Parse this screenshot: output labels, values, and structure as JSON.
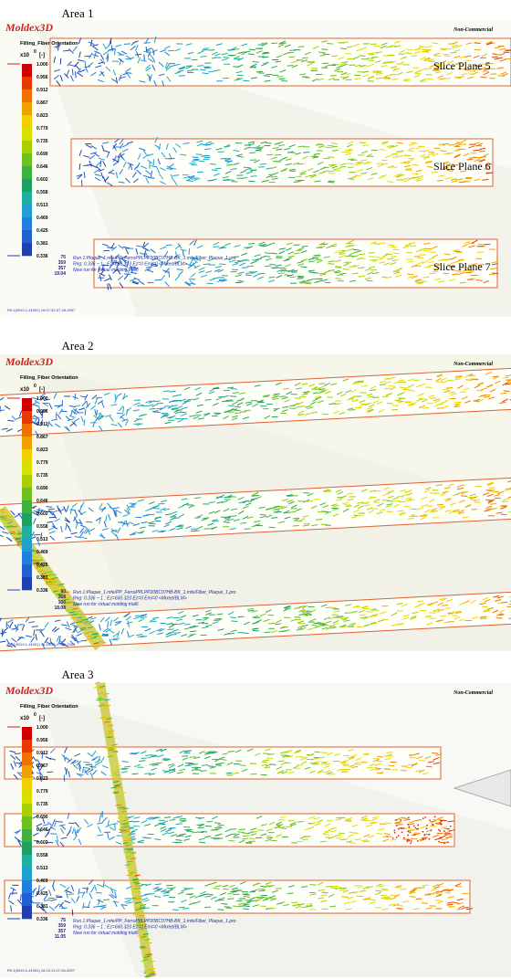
{
  "panels": [
    {
      "area": "Area 1",
      "logo": "Moldex3D",
      "watermark": "Non-Commercial",
      "legend_title": "Filling_Fiber Orientation",
      "scale": "x10",
      "exponent": "0",
      "unit": "[-]",
      "legend": [
        "1.000",
        "0.956",
        "0.912",
        "0.867",
        "0.823",
        "0.779",
        "0.735",
        "0.690",
        "0.646",
        "0.602",
        "0.558",
        "0.513",
        "0.469",
        "0.425",
        "0.381",
        "0.336"
      ],
      "slice_labels": [
        "Slice Plane 5",
        "Slice Plane 6",
        "Slice Plane 7"
      ],
      "stats": [
        "75",
        "359",
        "357",
        "19.04"
      ],
      "run_info": [
        "Run 1:Plaque_1.mfe/PP_FerroPPLPP20BC07HB-BK_1.mfe/Fiber_Plaque_1.pro",
        "Rng: 0.336 ~ 1 ; Ez=660.323 Ez=0 Emi=0 <Mixed/BLM>",
        "New run for virtual molding trial6"
      ],
      "footer": "R9.1(9010.1-41051) 16:07:32-07-26-2007"
    },
    {
      "area": "Area 2",
      "logo": "Moldex3D",
      "watermark": "Non-Commercial",
      "legend_title": "Filling_Fiber Orientation",
      "scale": "x10",
      "exponent": "0",
      "unit": "[-]",
      "legend": [
        "1.000",
        "0.956",
        "0.912",
        "0.867",
        "0.823",
        "0.779",
        "0.735",
        "0.690",
        "0.646",
        "0.602",
        "0.558",
        "0.513",
        "0.469",
        "0.425",
        "0.381",
        "0.336"
      ],
      "stats": [
        "60",
        "368",
        "100",
        "18.08"
      ],
      "run_info": [
        "Run 1:Plaque_1.mfe/PP_FerroPPLPP20BC07HB-BK_1.mfe/Fiber_Plaque_1.pro",
        "Rng: 0.336 ~ 1 ; Ez=660.323 Ez=0 Emi=0 <Mixed/BLM>",
        "New run for virtual molding trial6"
      ],
      "footer": "R9.1(9010.1-41051) 16:16:55-07-26-2007"
    },
    {
      "area": "Area 3",
      "logo": "Moldex3D",
      "watermark": "Non-Commercial",
      "legend_title": "Filling_Fiber Orientation",
      "scale": "x10",
      "exponent": "0",
      "unit": "[-]",
      "legend": [
        "1.000",
        "0.956",
        "0.912",
        "0.867",
        "0.823",
        "0.779",
        "0.735",
        "0.690",
        "0.646",
        "0.602",
        "0.558",
        "0.513",
        "0.469",
        "0.425",
        "0.381",
        "0.336"
      ],
      "stats": [
        "75",
        "359",
        "357",
        "11.05"
      ],
      "run_info": [
        "Run 1:Plaque_1.mfe/PP_FerroPPLPP20BC07HB-BK_1.mfe/Fiber_Plaque_1.pro",
        "Rng: 0.336 ~ 1 ; Ez=660.323 Ez=0 Emi=0 <Mixed/BLM>",
        "New run for virtual molding trial6"
      ],
      "footer": "R9.1(9010.1-41051) 16:12:11-07-26-2007"
    }
  ]
}
